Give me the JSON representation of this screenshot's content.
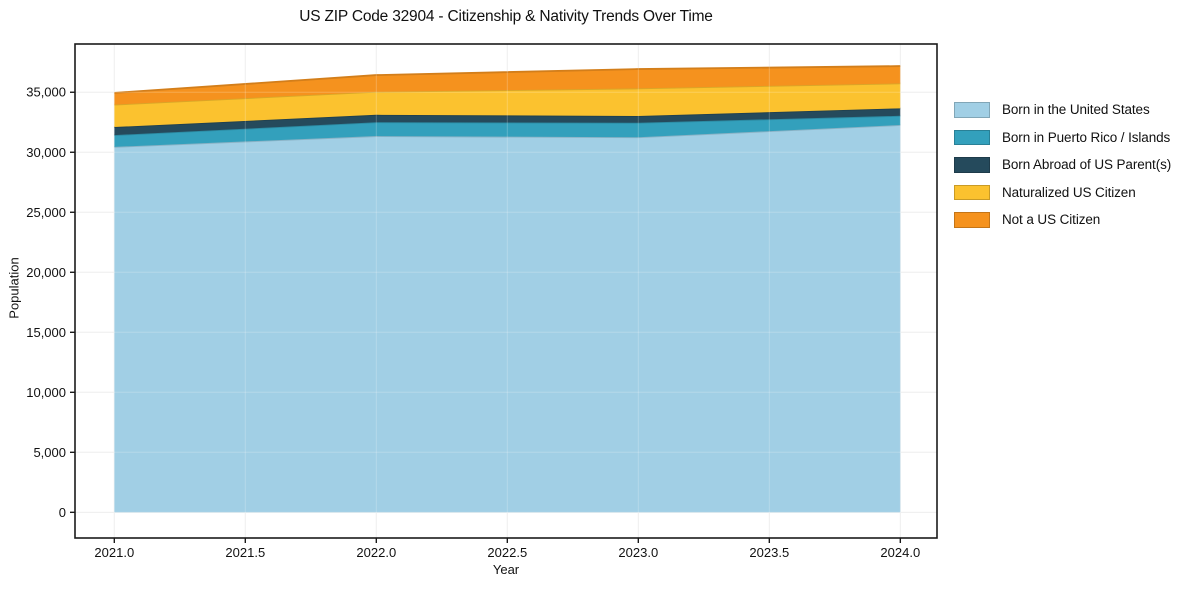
{
  "figure": {
    "background": "#ffffff",
    "axis_color": "#1a1a1a",
    "grid_color": "#ebebeb"
  },
  "chart_data": {
    "type": "area",
    "stacked": true,
    "title": "US ZIP Code 32904 - Citizenship & Nativity Trends Over Time",
    "xlabel": "Year",
    "ylabel": "Population",
    "x": [
      2021,
      2022,
      2023,
      2024
    ],
    "series": [
      {
        "name": "Born in the United States",
        "color": "#a1cfe5",
        "values": [
          30450,
          31350,
          31250,
          32270
        ]
      },
      {
        "name": "Born in Puerto Rico / Islands",
        "color": "#33a0bc",
        "values": [
          980,
          1150,
          1210,
          770
        ]
      },
      {
        "name": "Born Abroad of US Parent(s)",
        "color": "#254a5c",
        "values": [
          670,
          620,
          560,
          620
        ]
      },
      {
        "name": "Naturalized US Citizen",
        "color": "#fbc22f",
        "values": [
          1870,
          1920,
          2300,
          2080
        ]
      },
      {
        "name": "Not a US Citizen",
        "color": "#f5921e",
        "values": [
          980,
          1390,
          1610,
          1440
        ]
      }
    ],
    "totals": [
      34950,
      36430,
      36930,
      37180
    ],
    "x_tick_values": [
      2021.0,
      2021.5,
      2022.0,
      2022.5,
      2023.0,
      2023.5,
      2024.0
    ],
    "x_tick_labels": [
      "2021.0",
      "2021.5",
      "2022.0",
      "2022.5",
      "2023.0",
      "2023.5",
      "2024.0"
    ],
    "y_tick_values": [
      0,
      5000,
      10000,
      15000,
      20000,
      25000,
      30000,
      35000
    ],
    "y_tick_labels": [
      "0",
      "5,000",
      "10,000",
      "15,000",
      "20,000",
      "25,000",
      "30,000",
      "35,000"
    ],
    "xlim": [
      2020.85,
      2024.14
    ],
    "ylim": [
      -2140,
      39020
    ],
    "grid": true,
    "legend_position": "right-outside"
  }
}
